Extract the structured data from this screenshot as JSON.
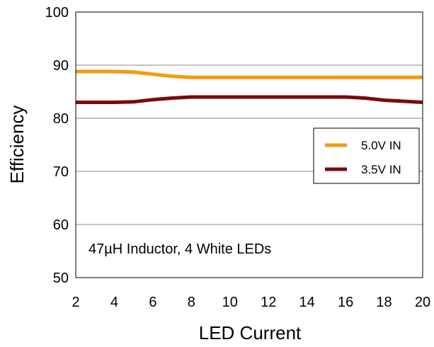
{
  "chart_data": {
    "type": "line",
    "xlabel": "LED Current",
    "ylabel": "Efficiency",
    "xlim": [
      2,
      20
    ],
    "ylim": [
      50,
      100
    ],
    "xticks": [
      "2",
      "4",
      "6",
      "8",
      "10",
      "12",
      "14",
      "16",
      "18",
      "20"
    ],
    "yticks": [
      "50",
      "60",
      "70",
      "80",
      "90",
      "100"
    ],
    "grid": "horizontal",
    "legend_position": "right",
    "annotation": "47µH Inductor, 4 White LEDs",
    "series": [
      {
        "name": "5.0V IN",
        "color": "#f59a0e",
        "x": [
          2,
          4,
          5,
          6,
          7,
          8,
          10,
          12,
          14,
          16,
          18,
          20
        ],
        "y": [
          88.8,
          88.8,
          88.7,
          88.3,
          87.9,
          87.7,
          87.7,
          87.7,
          87.7,
          87.7,
          87.7,
          87.7
        ]
      },
      {
        "name": "3.5V IN",
        "color": "#7a0a0a",
        "x": [
          2,
          4,
          5,
          6,
          7,
          8,
          10,
          12,
          14,
          16,
          17,
          18,
          20
        ],
        "y": [
          83.0,
          83.0,
          83.1,
          83.5,
          83.8,
          84.0,
          84.0,
          84.0,
          84.0,
          84.0,
          83.8,
          83.4,
          83.0
        ]
      }
    ]
  }
}
